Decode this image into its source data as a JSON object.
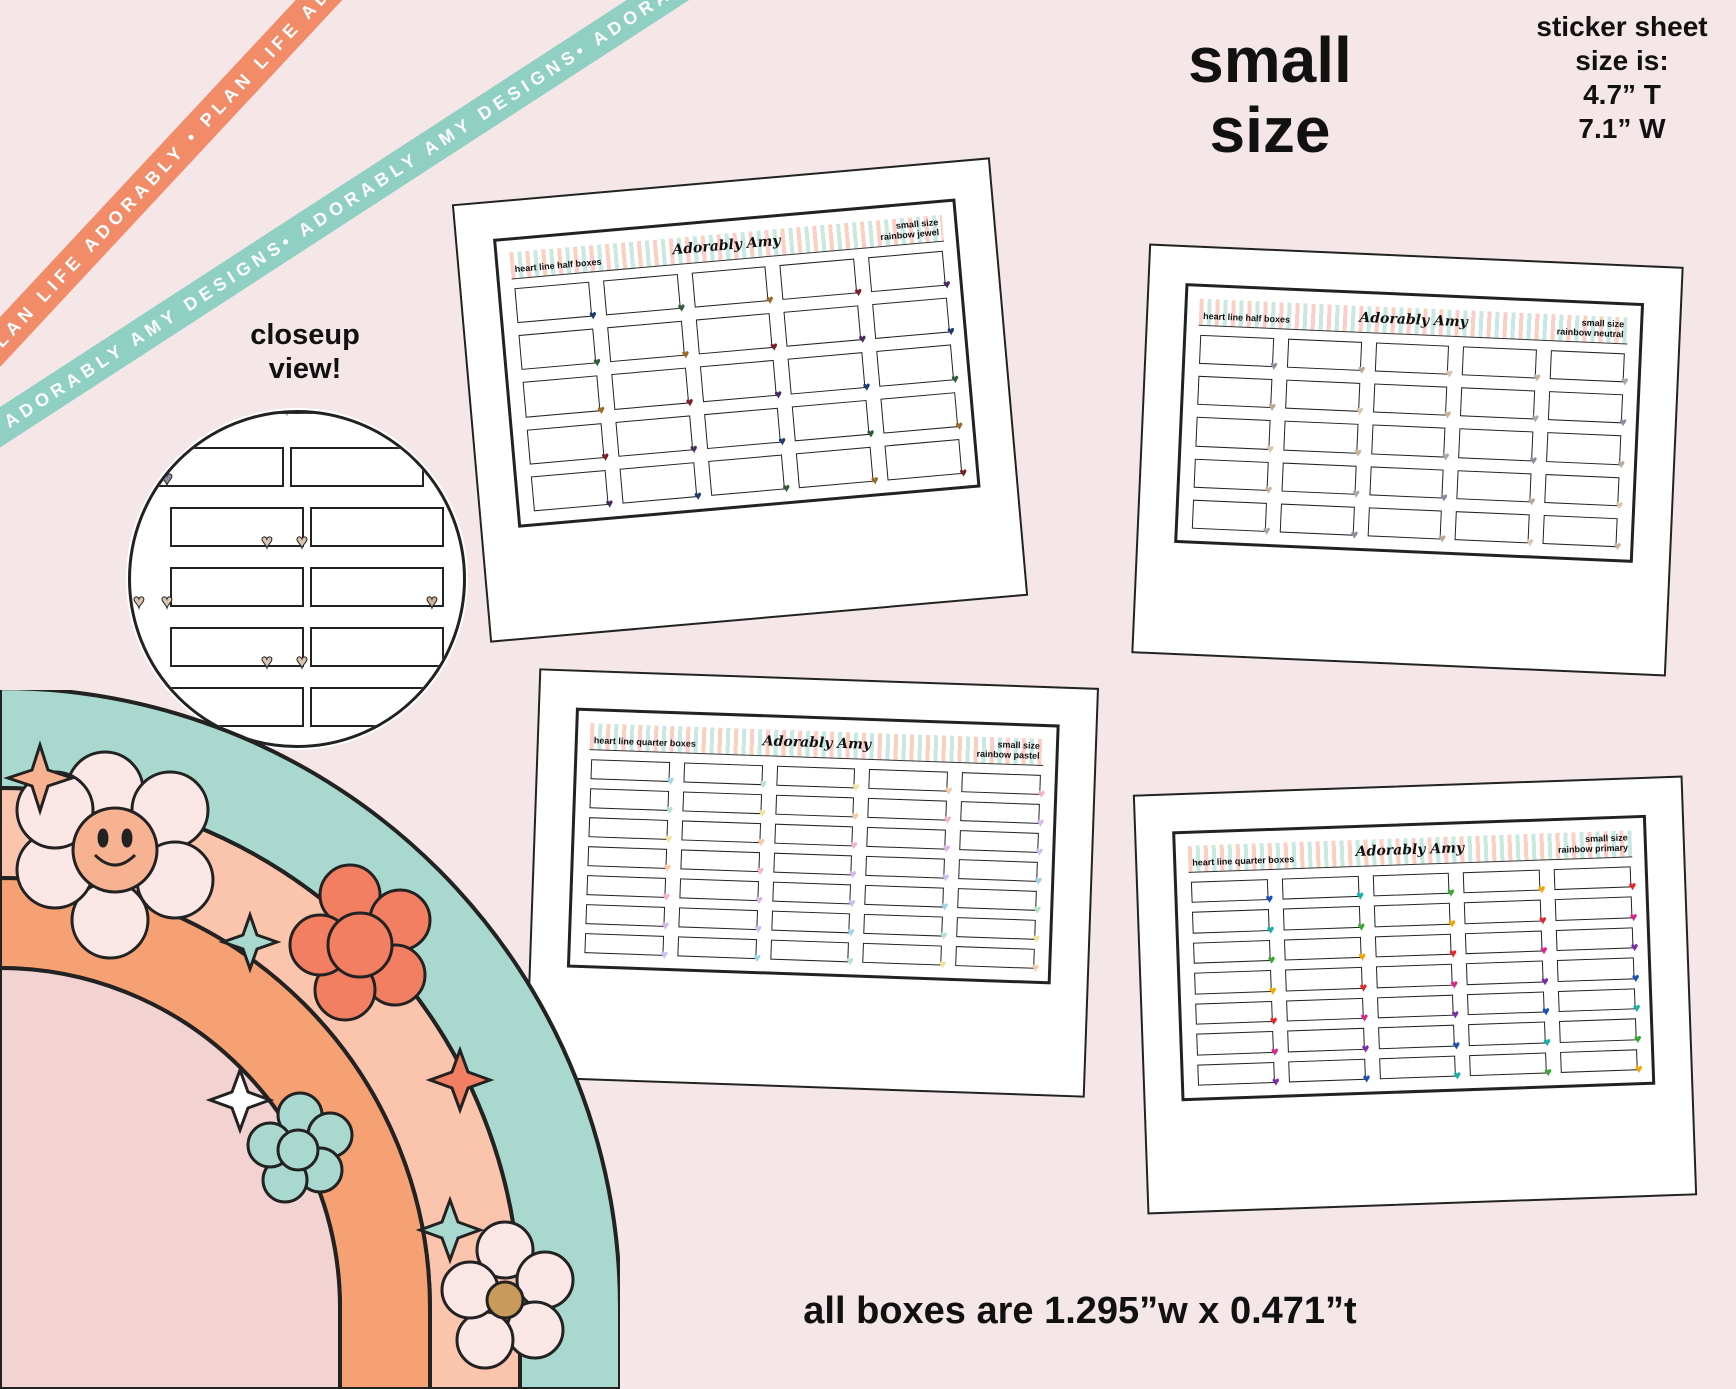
{
  "ribbons": {
    "orange_text": "PLAN LIFE ADORABLY • PLAN LIFE ADORABLY • PLAN LIFE ADORABLY •",
    "teal_text": "ADORABLY AMY DESIGNS• ADORABLY AMY DESIGNS• ADORABLY AMY DESIGNS•"
  },
  "heading": {
    "line1": "small",
    "line2": "size"
  },
  "sheet_size": {
    "line1": "sticker sheet",
    "line2": "size is:",
    "line3": "4.7” T",
    "line4": "7.1” W"
  },
  "closeup": {
    "line1": "closeup",
    "line2": "view!"
  },
  "footer": "all boxes are 1.295”w x 0.471”t",
  "sheets": [
    {
      "title": "heart line half boxes",
      "brand": "Adorably Amy",
      "right1": "small size",
      "right2": "rainbow jewel",
      "rows": 5,
      "heart_colors": [
        "#1f3a6b",
        "#2f5d3a",
        "#9a6b2a",
        "#7a1f2a",
        "#4a2a5a"
      ]
    },
    {
      "title": "heart line half boxes",
      "brand": "Adorably Amy",
      "right1": "small size",
      "right2": "rainbow neutral",
      "rows": 5,
      "heart_colors": [
        "#8a8fa0",
        "#b8a898",
        "#d8c4b0",
        "#c8b49a",
        "#a8a8a8"
      ]
    },
    {
      "title": "heart line quarter boxes",
      "brand": "Adorably Amy",
      "right1": "small size",
      "right2": "rainbow pastel",
      "rows": 7,
      "heart_colors": [
        "#9fd3e6",
        "#b8e2c8",
        "#f2e39a",
        "#f6c9a8",
        "#f4b6c2",
        "#d6b8e6",
        "#c7c2ef"
      ]
    },
    {
      "title": "heart line quarter boxes",
      "brand": "Adorably Amy",
      "right1": "small size",
      "right2": "rainbow primary",
      "rows": 7,
      "heart_colors": [
        "#1a4fb5",
        "#17b2a5",
        "#3aa635",
        "#f2a600",
        "#e1262c",
        "#d8288c",
        "#7b2ea8"
      ]
    }
  ]
}
